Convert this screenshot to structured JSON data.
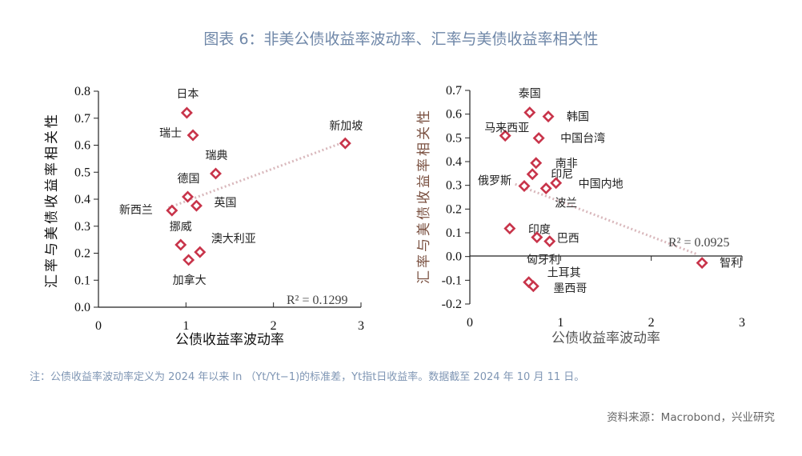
{
  "title": "图表 6：非美公债收益率波动率、汇率与美债收益率相关性",
  "note": "注：公债收益率波动率定义为 2024 年以来 ln （Yt/Yt−1)的标准差，Yt指t日收益率。数据截至 2024 年 10 月 11 日。",
  "source": "资料来源：Macrobond，兴业研究",
  "colors": {
    "marker": "#c8344a",
    "trendline": "#d9b8bc",
    "title": "#6f87a8",
    "note": "#7f96b4"
  },
  "chart_data": [
    {
      "type": "scatter",
      "xlabel": "公债收益率波动率",
      "ylabel": "汇率与美债收益率相关性",
      "xlim": [
        0,
        3
      ],
      "ylim": [
        0,
        0.8
      ],
      "xticks": [
        "0",
        "1",
        "2",
        "3"
      ],
      "yticks": [
        "0.0",
        "0.1",
        "0.2",
        "0.3",
        "0.4",
        "0.5",
        "0.6",
        "0.7",
        "0.8"
      ],
      "trendline": "linear",
      "r2_label": "R² = 0.1299",
      "points": [
        {
          "label": "日本",
          "x": 1.01,
          "y": 0.72
        },
        {
          "label": "瑞士",
          "x": 1.08,
          "y": 0.637
        },
        {
          "label": "瑞典",
          "x": 1.34,
          "y": 0.495
        },
        {
          "label": "德国",
          "x": 1.02,
          "y": 0.409
        },
        {
          "label": "英国",
          "x": 1.12,
          "y": 0.376
        },
        {
          "label": "新西兰",
          "x": 0.84,
          "y": 0.358
        },
        {
          "label": "挪威",
          "x": 0.94,
          "y": 0.231
        },
        {
          "label": "澳大利亚",
          "x": 1.16,
          "y": 0.204
        },
        {
          "label": "加拿大",
          "x": 1.03,
          "y": 0.175
        },
        {
          "label": "新加坡",
          "x": 2.82,
          "y": 0.607
        }
      ]
    },
    {
      "type": "scatter",
      "xlabel": "公债收益率波动率",
      "ylabel": "汇率与美债收益率相关性",
      "xlim": [
        0,
        3
      ],
      "ylim": [
        -0.2,
        0.7
      ],
      "xticks": [
        "0",
        "1",
        "2",
        "3"
      ],
      "yticks": [
        "-0.2",
        "-0.1",
        "0.0",
        "0.1",
        "0.2",
        "0.3",
        "0.4",
        "0.5",
        "0.6",
        "0.7"
      ],
      "trendline": "linear",
      "r2_label": "R² = 0.0925",
      "points": [
        {
          "label": "泰国",
          "x": 0.66,
          "y": 0.607
        },
        {
          "label": "韩国",
          "x": 0.865,
          "y": 0.59
        },
        {
          "label": "马来西亚",
          "x": 0.39,
          "y": 0.509
        },
        {
          "label": "中国台湾",
          "x": 0.76,
          "y": 0.499
        },
        {
          "label": "南非",
          "x": 0.73,
          "y": 0.394
        },
        {
          "label": "印尼",
          "x": 0.69,
          "y": 0.347
        },
        {
          "label": "中国内地",
          "x": 0.95,
          "y": 0.31
        },
        {
          "label": "俄罗斯",
          "x": 0.6,
          "y": 0.297
        },
        {
          "label": "波兰",
          "x": 0.84,
          "y": 0.287
        },
        {
          "label": "印度",
          "x": 0.44,
          "y": 0.118
        },
        {
          "label": "匈牙利",
          "x": 0.74,
          "y": 0.081
        },
        {
          "label": "巴西",
          "x": 0.88,
          "y": 0.064
        },
        {
          "label": "土耳其",
          "x": 0.65,
          "y": -0.108
        },
        {
          "label": "墨西哥",
          "x": 0.7,
          "y": -0.125
        },
        {
          "label": "智利",
          "x": 2.56,
          "y": -0.027
        }
      ]
    }
  ]
}
